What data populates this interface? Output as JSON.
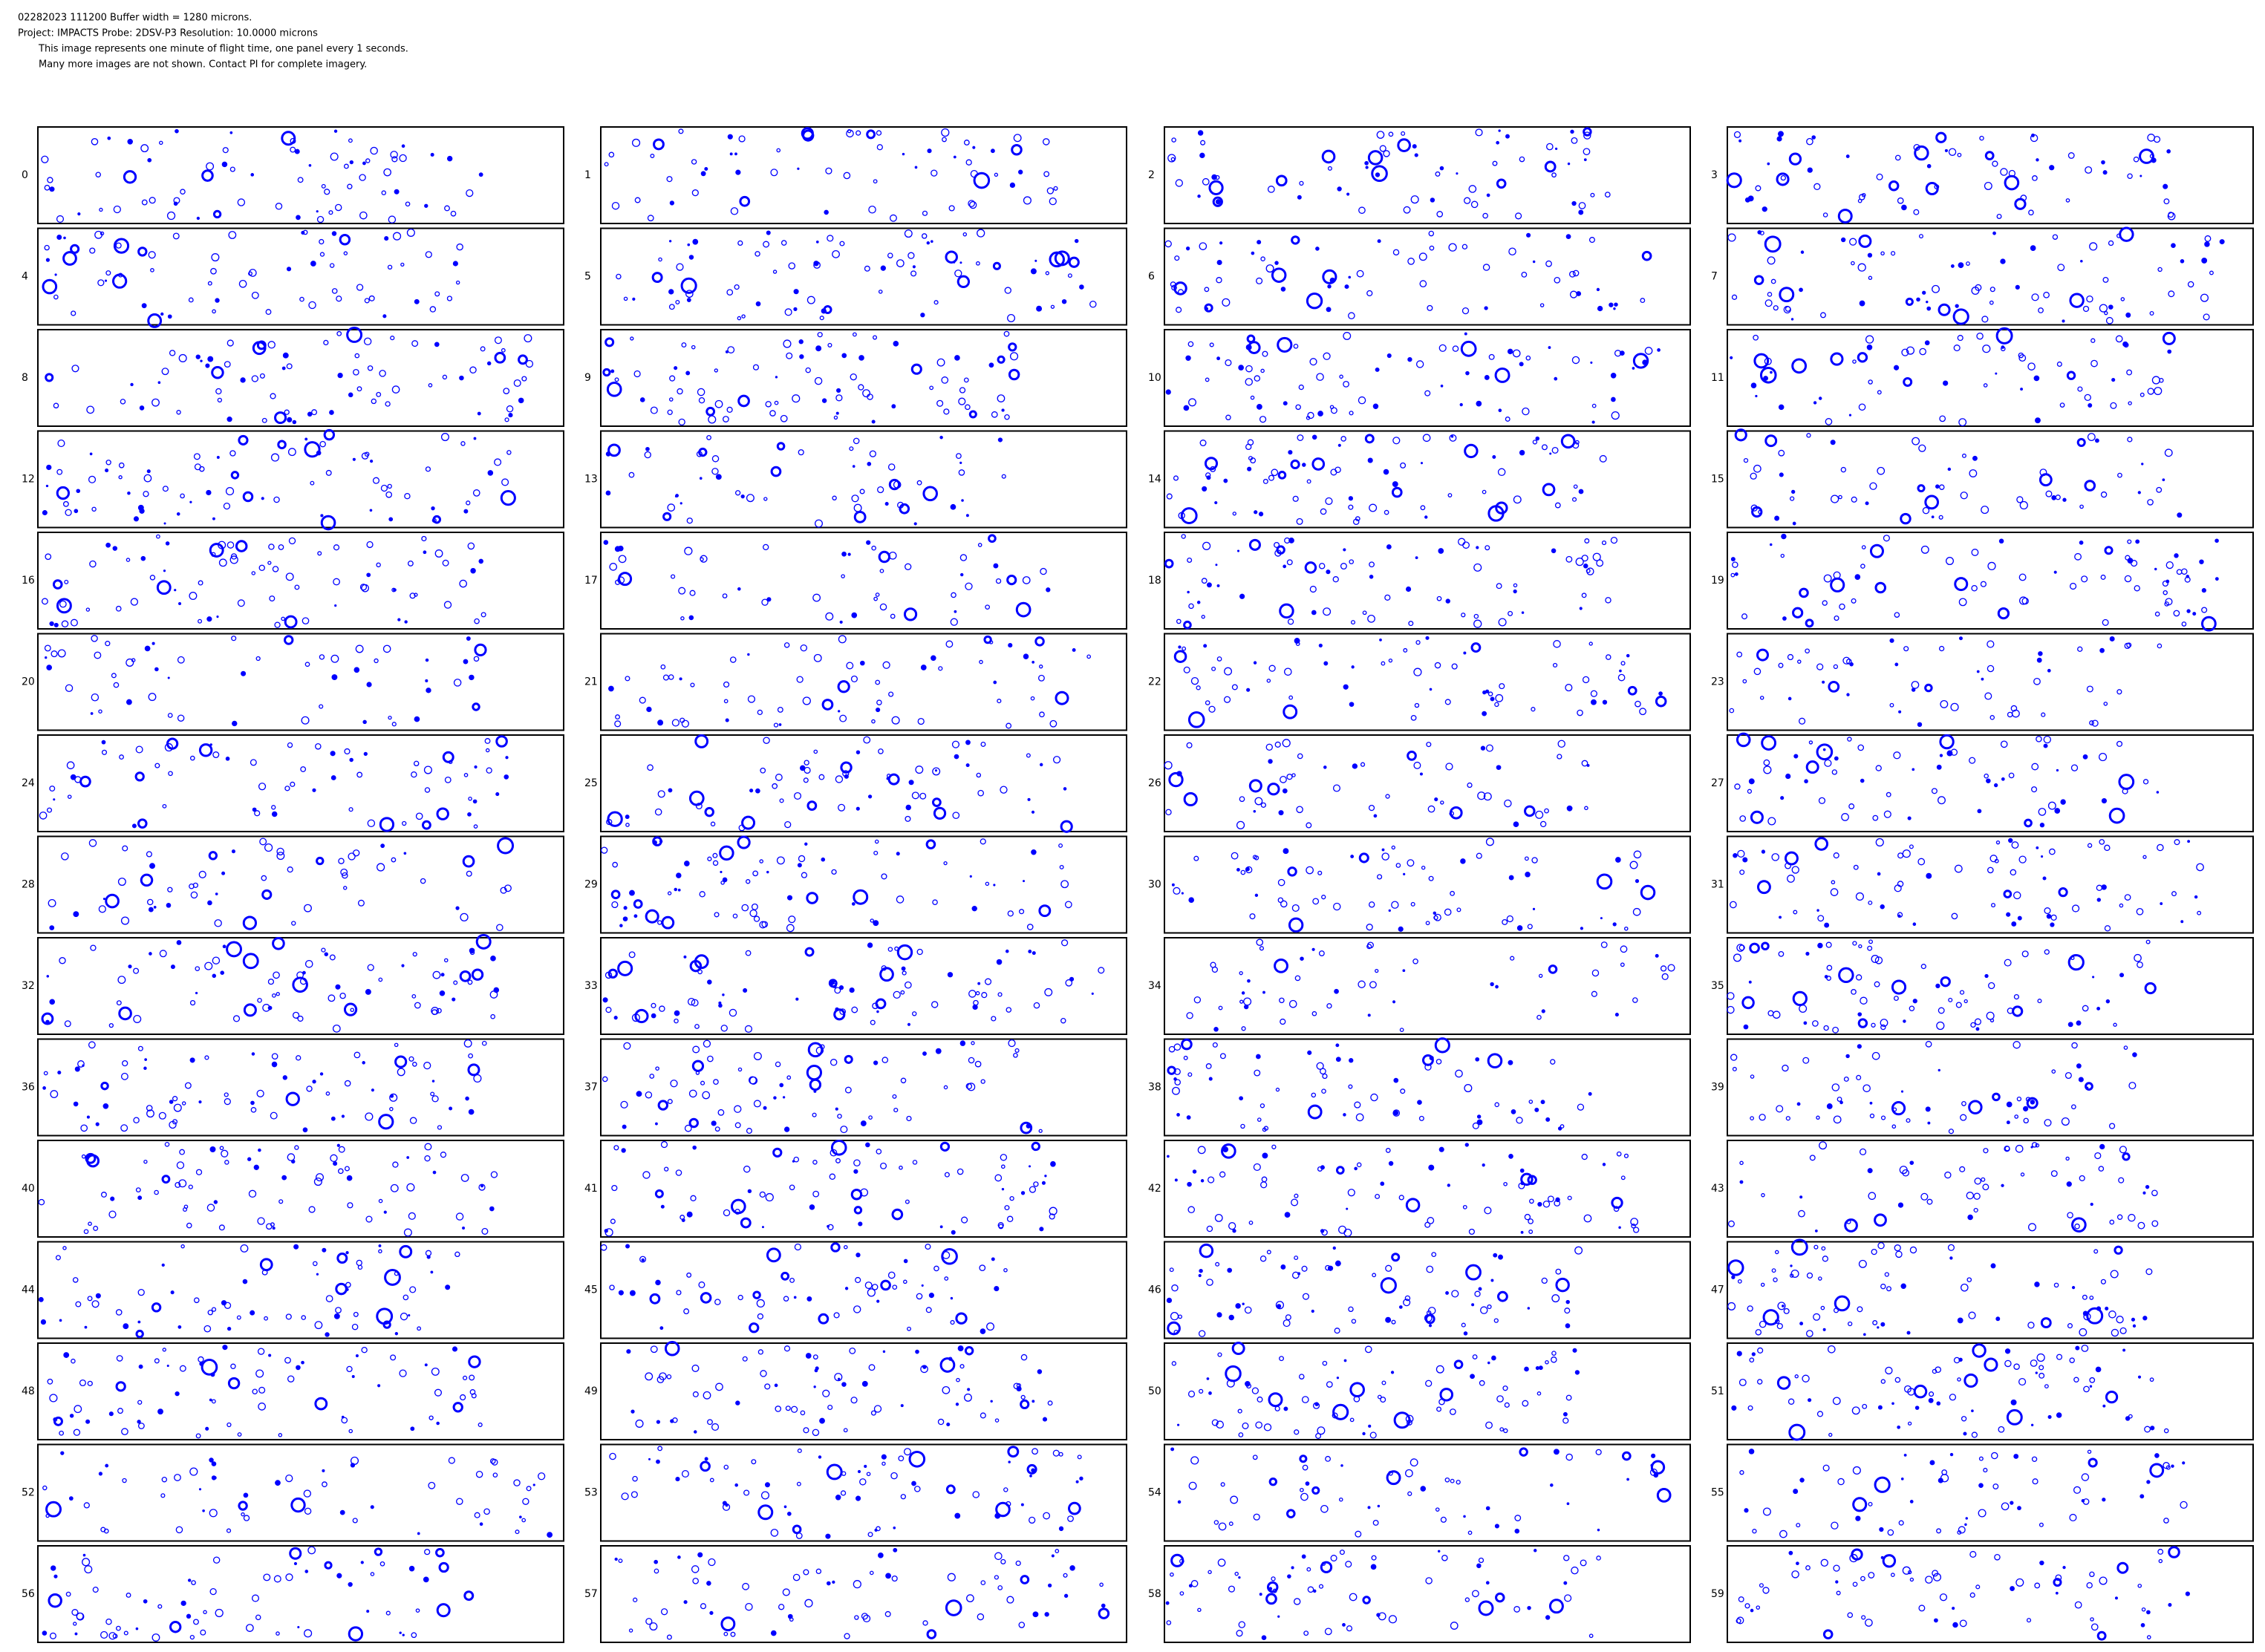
{
  "header": {
    "lines": [
      "02282023 111200  Buffer width = 1280 microns.",
      "Project: IMPACTS  Probe: 2DSV-P3   Resolution: 10.0000 microns",
      "This image represents one minute of flight time, one panel every 1 seconds.",
      "Many more images are not shown.  Contact PI for complete imagery."
    ]
  },
  "panels": [
    "0",
    "1",
    "2",
    "3",
    "4",
    "5",
    "6",
    "7",
    "8",
    "9",
    "10",
    "11",
    "12",
    "13",
    "14",
    "15",
    "16",
    "17",
    "18",
    "19",
    "20",
    "21",
    "22",
    "23",
    "24",
    "25",
    "26",
    "27",
    "28",
    "29",
    "30",
    "31",
    "32",
    "33",
    "34",
    "35",
    "36",
    "37",
    "38",
    "39",
    "40",
    "41",
    "42",
    "43",
    "44",
    "45",
    "46",
    "47",
    "48",
    "49",
    "50",
    "51",
    "52",
    "53",
    "54",
    "55",
    "56",
    "57",
    "58",
    "59"
  ]
}
